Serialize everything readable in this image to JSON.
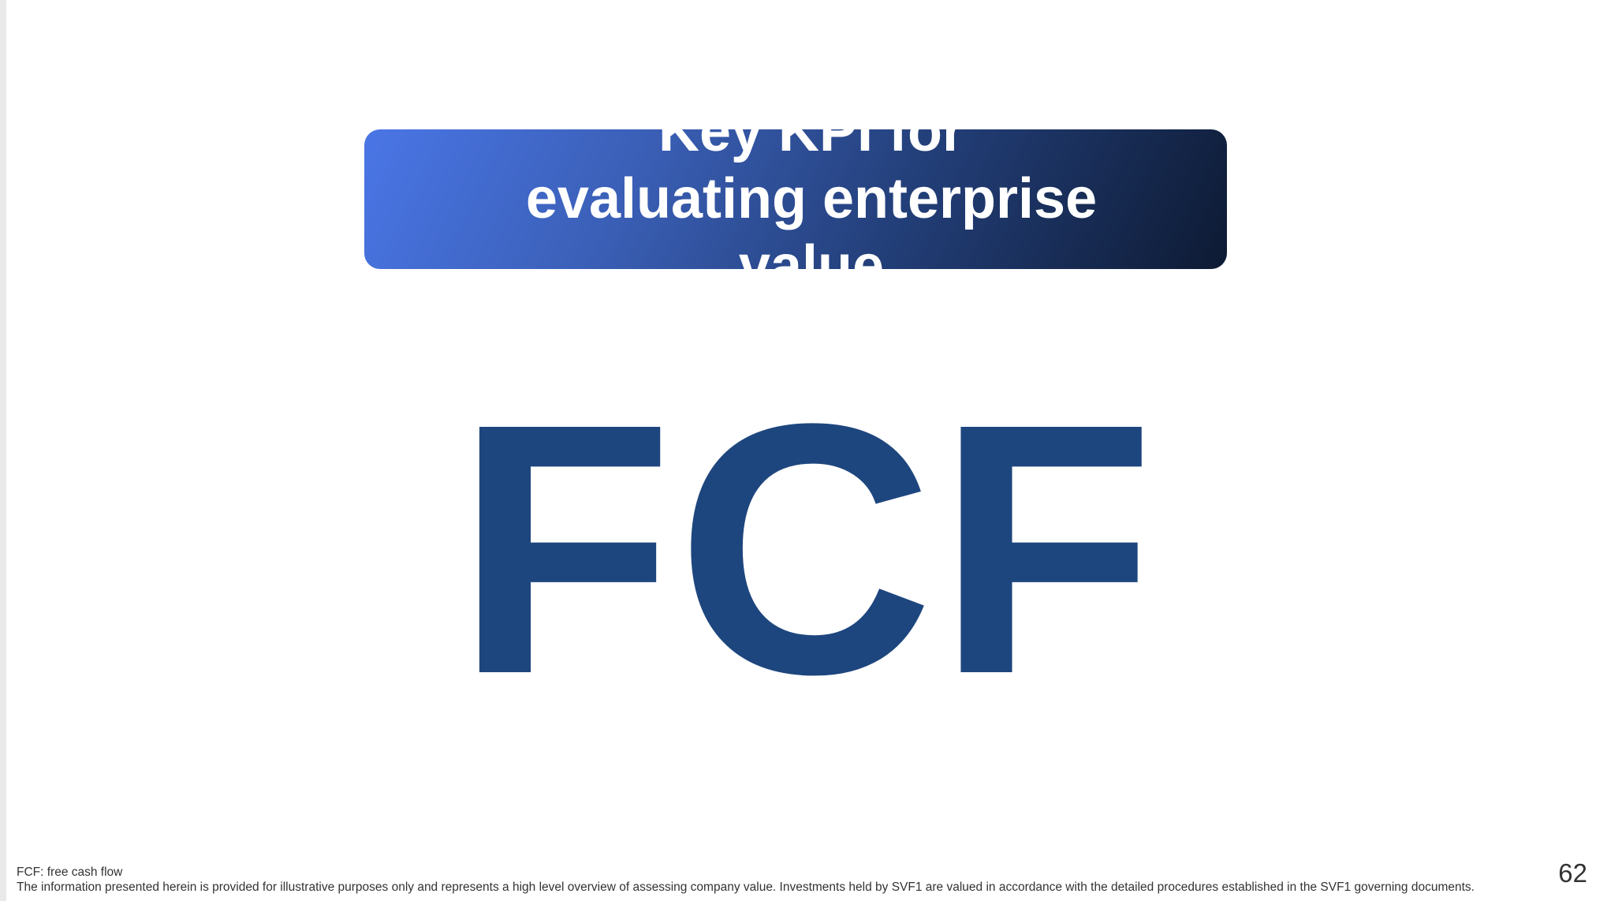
{
  "slide": {
    "title": "Key KPI for evaluating enterprise value",
    "kpi": "FCF",
    "footnotes": [
      "FCF: free cash flow",
      "The information presented herein is provided for illustrative purposes only and represents a high level overview of assessing company value. Investments held by SVF1 are valued in accordance with the detailed procedures established in the SVF1 governing documents."
    ],
    "page_number": "62"
  },
  "colors": {
    "banner_gradient_start": "#4a76e6",
    "banner_gradient_end": "#0d1a33",
    "kpi_text": "#1e467e",
    "footnote_text": "#333333"
  }
}
